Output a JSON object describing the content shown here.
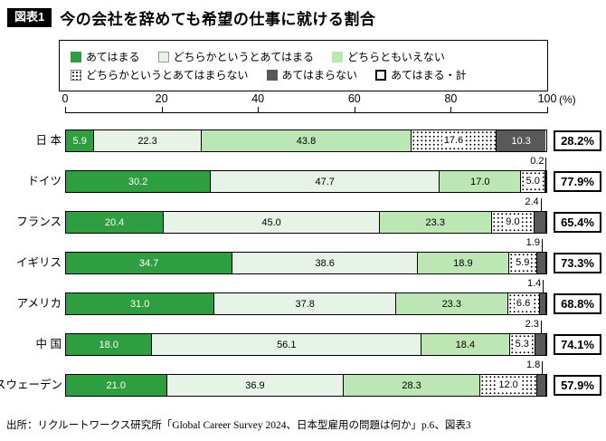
{
  "title": {
    "tag": "図表1",
    "text": "今の会社を辞めても希望の仕事に就ける割合"
  },
  "legend": [
    {
      "label": "あてはまる"
    },
    {
      "label": "どちらかというとあてはまる"
    },
    {
      "label": "どちらともいえない"
    },
    {
      "label": "どちらかというとあてはまらない"
    },
    {
      "label": "あてはまらない"
    },
    {
      "label": "あてはまる・計"
    }
  ],
  "axis": {
    "ticks": [
      0,
      20,
      40,
      60,
      80,
      100
    ],
    "unit": "(%)"
  },
  "chart_data": {
    "type": "bar",
    "orientation": "horizontal-stacked",
    "title": "今の会社を辞めても希望の仕事に就ける割合",
    "xlim": [
      0,
      100
    ],
    "unit": "%",
    "legend_position": "top",
    "series_names": [
      "あてはまる",
      "どちらかというとあてはまる",
      "どちらともいえない",
      "どちらかというとあてはまらない",
      "あてはまらない"
    ],
    "categories": [
      "日 本",
      "ドイツ",
      "フランス",
      "イギリス",
      "アメリカ",
      "中 国",
      "スウェーデン"
    ],
    "rows": [
      {
        "label": "日 本",
        "values": [
          5.9,
          22.3,
          43.8,
          17.6,
          10.3
        ],
        "inside_labels": [
          "5.9",
          "22.3",
          "43.8",
          "17.6",
          "10.3"
        ],
        "callout": null,
        "total": "28.2%"
      },
      {
        "label": "ドイツ",
        "values": [
          30.2,
          47.7,
          17.0,
          5.0,
          0.2
        ],
        "inside_labels": [
          "30.2",
          "47.7",
          "17.0",
          "5.0",
          ""
        ],
        "callout": "0.2",
        "total": "77.9%"
      },
      {
        "label": "フランス",
        "values": [
          20.4,
          45.0,
          23.3,
          9.0,
          2.4
        ],
        "inside_labels": [
          "20.4",
          "45.0",
          "23.3",
          "9.0",
          ""
        ],
        "callout": "2.4",
        "total": "65.4%"
      },
      {
        "label": "イギリス",
        "values": [
          34.7,
          38.6,
          18.9,
          5.9,
          1.9
        ],
        "inside_labels": [
          "34.7",
          "38.6",
          "18.9",
          "5.9",
          ""
        ],
        "callout": "1.9",
        "total": "73.3%"
      },
      {
        "label": "アメリカ",
        "values": [
          31.0,
          37.8,
          23.3,
          6.6,
          1.4
        ],
        "inside_labels": [
          "31.0",
          "37.8",
          "23.3",
          "6.6",
          ""
        ],
        "callout": "1.4",
        "total": "68.8%"
      },
      {
        "label": "中 国",
        "values": [
          18.0,
          56.1,
          18.4,
          5.3,
          2.3
        ],
        "inside_labels": [
          "18.0",
          "56.1",
          "18.4",
          "5.3",
          ""
        ],
        "callout": "2.3",
        "total": "74.1%"
      },
      {
        "label": "スウェーデン",
        "values": [
          21.0,
          36.9,
          28.3,
          12.0,
          1.8
        ],
        "inside_labels": [
          "21.0",
          "36.9",
          "28.3",
          "12.0",
          ""
        ],
        "callout": "1.8",
        "total": "57.9%"
      }
    ]
  },
  "colors": {
    "dark_green": "#2e9e40",
    "pale_green": "#e7f3e6",
    "light_green": "#bce6b4",
    "dot_pattern": "black dots on white",
    "dark_gray": "#595959",
    "total_box_bg": "#ffffff"
  },
  "source": "出所：リクルートワークス研究所「Global Career Survey 2024、日本型雇用の問題は何か」p.6、図表3"
}
